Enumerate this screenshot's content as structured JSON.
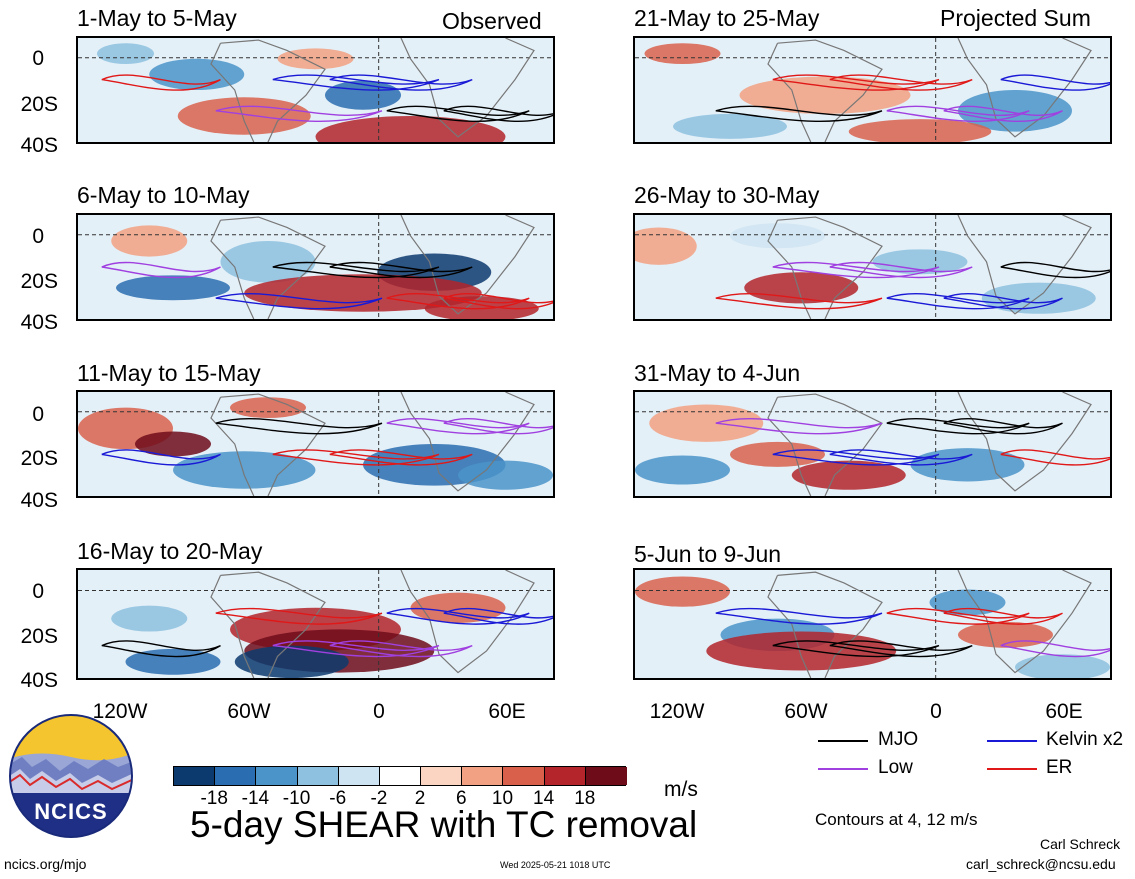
{
  "figure": {
    "left_column_tag": "Observed",
    "right_column_tag": "Projected Sum",
    "main_title": "5-day SHEAR with TC removal",
    "units": "m/s",
    "contours_note": "Contours at 4, 12 m/s",
    "author": "Carl Schreck",
    "email": "carl_schreck@ncsu.edu",
    "site": "ncics.org/mjo",
    "timestamp": "Wed 2025-05-21 1018 UTC",
    "logo_text": "NCICS"
  },
  "panels_left": [
    {
      "title": "1-May to 5-May"
    },
    {
      "title": "6-May to 10-May"
    },
    {
      "title": "11-May to 15-May"
    },
    {
      "title": "16-May to 20-May"
    }
  ],
  "panels_right": [
    {
      "title": "21-May to 25-May"
    },
    {
      "title": "26-May to 30-May"
    },
    {
      "title": "31-May to 4-Jun"
    },
    {
      "title": "5-Jun to 9-Jun"
    }
  ],
  "lat_labels": [
    "0",
    "20S",
    "40S"
  ],
  "lon_labels": [
    "120W",
    "60W",
    "0",
    "60E"
  ],
  "colorbar": {
    "labels": [
      "-18",
      "-14",
      "-10",
      "-6",
      "-2",
      "2",
      "6",
      "10",
      "14",
      "18"
    ],
    "colors": [
      "#0d3a6e",
      "#2a6db0",
      "#4a94c9",
      "#8dc1df",
      "#cfe4f2",
      "#ffffff",
      "#fbd5c2",
      "#f2a182",
      "#d9614c",
      "#b3242b",
      "#6e0c1a"
    ]
  },
  "legend": {
    "items": [
      {
        "label": "MJO",
        "color": "#000000"
      },
      {
        "label": "Kelvin x2",
        "color": "#1a1ad6"
      },
      {
        "label": "Low",
        "color": "#a040e0"
      },
      {
        "label": "ER",
        "color": "#e01818"
      }
    ]
  }
}
